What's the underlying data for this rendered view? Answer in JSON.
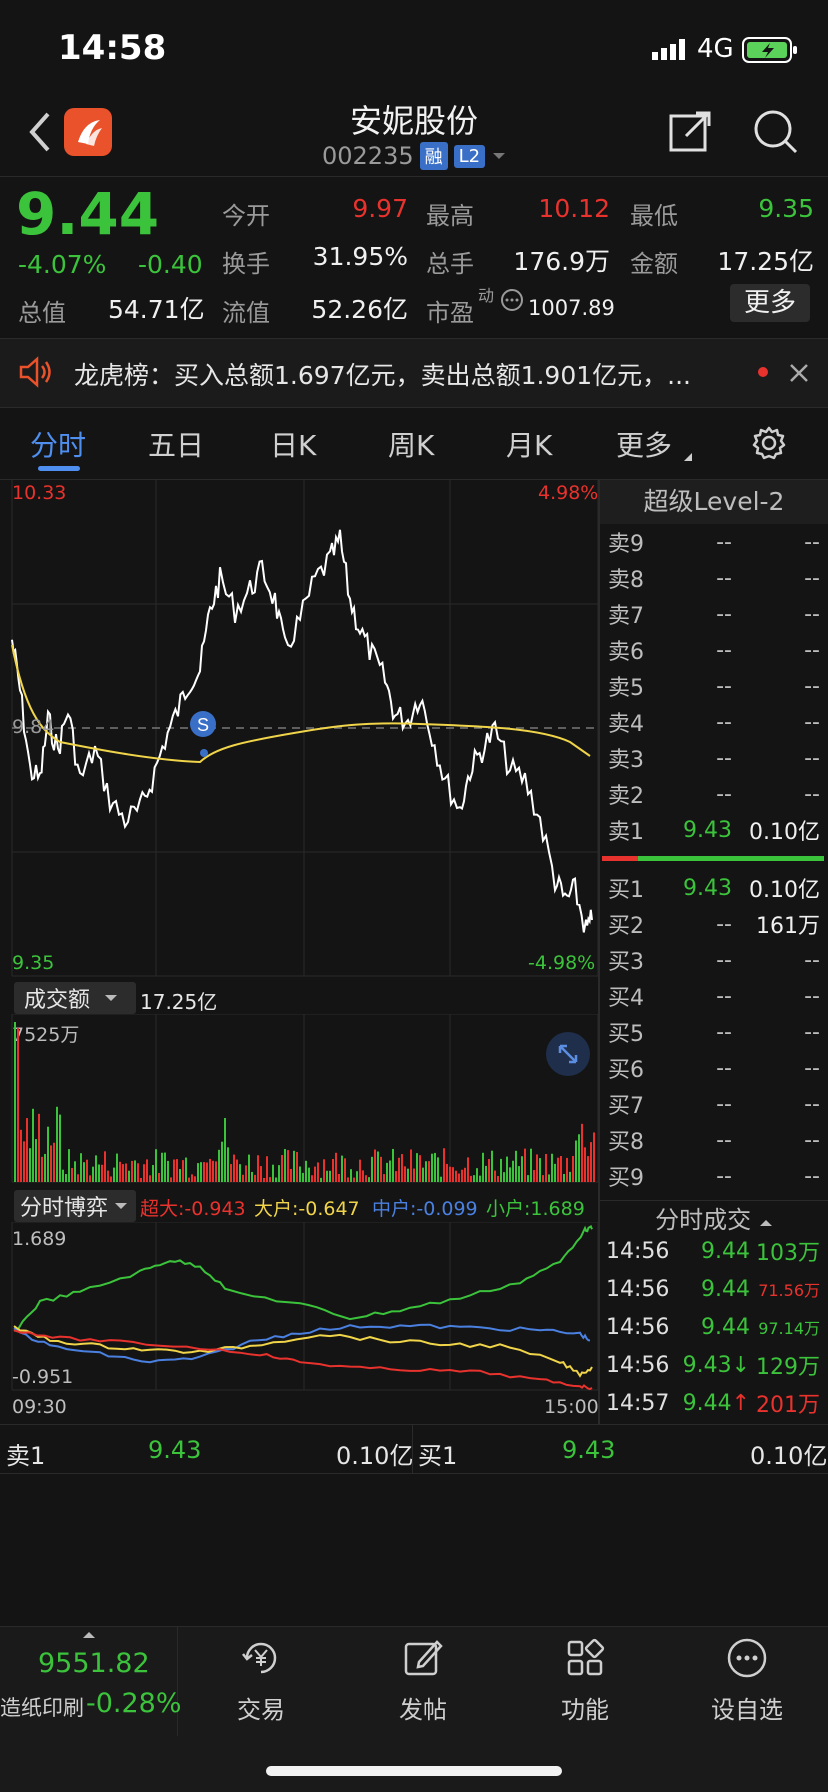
{
  "status": {
    "time": "14:58",
    "network": "4G"
  },
  "header": {
    "title": "安妮股份",
    "code": "002235",
    "tag_margin": "融",
    "tag_level": "L2"
  },
  "quote": {
    "price": "9.44",
    "change_pct": "-4.07%",
    "change": "-0.40",
    "open_label": "今开",
    "open": "9.97",
    "high_label": "最高",
    "high": "10.12",
    "low_label": "最低",
    "low": "9.35",
    "turnover_label": "换手",
    "turnover": "31.95%",
    "volume_label": "总手",
    "volume": "176.9万",
    "amount_label": "金额",
    "amount": "17.25亿",
    "mktcap_label": "总值",
    "mktcap": "54.71亿",
    "float_label": "流值",
    "float_cap": "52.26亿",
    "pe_label": "市盈",
    "pe_sup": "动",
    "pe": "1007.89",
    "more_label": "更多"
  },
  "banner": {
    "text": "龙虎榜：买入总额1.697亿元，卖出总额1.901亿元，..."
  },
  "tabs": [
    "分时",
    "五日",
    "日K",
    "周K",
    "月K",
    "更多"
  ],
  "chart": {
    "price_top": "10.33",
    "price_bottom": "9.35",
    "price_mid": "9.84",
    "pct_top": "4.98%",
    "pct_bottom": "-4.98%",
    "marker": "S",
    "volume_selector": "成交额",
    "volume_total": "17.25亿",
    "volume_max": "7525万",
    "game_selector": "分时博弈",
    "game_items": [
      {
        "label": "超大:-0.943",
        "color": "#e8322d"
      },
      {
        "label": "大户:-0.647",
        "color": "#f0d44a"
      },
      {
        "label": "中户:-0.099",
        "color": "#4a80e0"
      },
      {
        "label": "小户:1.689",
        "color": "#3cc33c"
      }
    ],
    "game_top": "1.689",
    "game_bottom": "-0.951",
    "time_start": "09:30",
    "time_end": "15:00"
  },
  "orderbook": {
    "title": "超级Level-2",
    "asks": [
      {
        "label": "卖9",
        "price": "--",
        "vol": "--"
      },
      {
        "label": "卖8",
        "price": "--",
        "vol": "--"
      },
      {
        "label": "卖7",
        "price": "--",
        "vol": "--"
      },
      {
        "label": "卖6",
        "price": "--",
        "vol": "--"
      },
      {
        "label": "卖5",
        "price": "--",
        "vol": "--"
      },
      {
        "label": "卖4",
        "price": "--",
        "vol": "--"
      },
      {
        "label": "卖3",
        "price": "--",
        "vol": "--"
      },
      {
        "label": "卖2",
        "price": "--",
        "vol": "--"
      },
      {
        "label": "卖1",
        "price": "9.43",
        "vol": "0.10亿"
      }
    ],
    "bids": [
      {
        "label": "买1",
        "price": "9.43",
        "vol": "0.10亿"
      },
      {
        "label": "买2",
        "price": "--",
        "vol": "161万"
      },
      {
        "label": "买3",
        "price": "--",
        "vol": "--"
      },
      {
        "label": "买4",
        "price": "--",
        "vol": "--"
      },
      {
        "label": "买5",
        "price": "--",
        "vol": "--"
      },
      {
        "label": "买6",
        "price": "--",
        "vol": "--"
      },
      {
        "label": "买7",
        "price": "--",
        "vol": "--"
      },
      {
        "label": "买8",
        "price": "--",
        "vol": "--"
      },
      {
        "label": "买9",
        "price": "--",
        "vol": "--"
      }
    ]
  },
  "timesales": {
    "title": "分时成交",
    "rows": [
      {
        "time": "14:56",
        "price": "9.44",
        "vol": "103万",
        "arrow": ""
      },
      {
        "time": "14:56",
        "price": "9.44",
        "vol": "71.56万",
        "arrow": ""
      },
      {
        "time": "14:56",
        "price": "9.44",
        "vol": "97.14万",
        "arrow": ""
      },
      {
        "time": "14:56",
        "price": "9.43",
        "vol": "129万",
        "arrow": "↓"
      },
      {
        "time": "14:57",
        "price": "9.44",
        "vol": "201万",
        "arrow": "↑"
      }
    ]
  },
  "bottom_quote": {
    "ask_label": "卖1",
    "ask_price": "9.43",
    "ask_vol": "0.10亿",
    "bid_label": "买1",
    "bid_price": "9.43",
    "bid_vol": "0.10亿"
  },
  "index": {
    "value": "9551.82",
    "name": "造纸印刷",
    "change": "-0.28%"
  },
  "nav": [
    "交易",
    "发帖",
    "功能",
    "设自选"
  ],
  "colors": {
    "up": "#e8322d",
    "down": "#3cc33c",
    "accent": "#4f8ff0",
    "avg_line": "#f0d44a"
  }
}
